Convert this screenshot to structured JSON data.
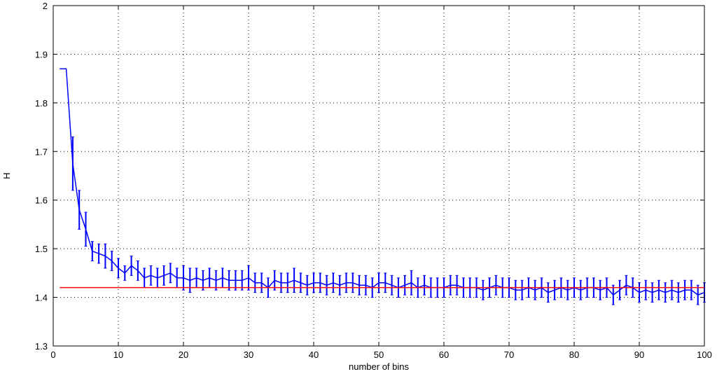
{
  "chart_data": {
    "type": "line",
    "title": "",
    "xlabel": "number of bins",
    "ylabel": "H",
    "xlim": [
      0,
      100
    ],
    "ylim": [
      1.3,
      2.0
    ],
    "xticks": [
      0,
      10,
      20,
      30,
      40,
      50,
      60,
      70,
      80,
      90,
      100
    ],
    "yticks": [
      1.3,
      1.4,
      1.5,
      1.6,
      1.7,
      1.8,
      1.9,
      2.0
    ],
    "xtick_labels": [
      "0",
      "10",
      "20",
      "30",
      "40",
      "50",
      "60",
      "70",
      "80",
      "90",
      "100"
    ],
    "ytick_labels": [
      "1.3",
      "1.4",
      "1.5",
      "1.6",
      "1.7",
      "1.8",
      "1.9",
      "2"
    ],
    "grid": true,
    "grid_style": "dotted",
    "series": [
      {
        "color": "#0000ff",
        "style": "errorbar",
        "x": [
          1,
          2,
          3,
          4,
          5,
          6,
          7,
          8,
          9,
          10,
          11,
          12,
          13,
          14,
          15,
          16,
          17,
          18,
          19,
          20,
          21,
          22,
          23,
          24,
          25,
          26,
          27,
          28,
          29,
          30,
          31,
          32,
          33,
          34,
          35,
          36,
          37,
          38,
          39,
          40,
          41,
          42,
          43,
          44,
          45,
          46,
          47,
          48,
          49,
          50,
          51,
          52,
          53,
          54,
          55,
          56,
          57,
          58,
          59,
          60,
          61,
          62,
          63,
          64,
          65,
          66,
          67,
          68,
          69,
          70,
          71,
          72,
          73,
          74,
          75,
          76,
          77,
          78,
          79,
          80,
          81,
          82,
          83,
          84,
          85,
          86,
          87,
          88,
          89,
          90,
          91,
          92,
          93,
          94,
          95,
          96,
          97,
          98,
          99,
          100
        ],
        "y": [
          1.87,
          1.87,
          1.675,
          1.58,
          1.54,
          1.495,
          1.49,
          1.485,
          1.475,
          1.46,
          1.45,
          1.465,
          1.455,
          1.44,
          1.445,
          1.44,
          1.445,
          1.45,
          1.44,
          1.44,
          1.435,
          1.44,
          1.435,
          1.44,
          1.435,
          1.44,
          1.435,
          1.435,
          1.435,
          1.44,
          1.43,
          1.43,
          1.42,
          1.435,
          1.43,
          1.43,
          1.435,
          1.43,
          1.425,
          1.43,
          1.43,
          1.425,
          1.43,
          1.425,
          1.43,
          1.43,
          1.425,
          1.425,
          1.42,
          1.43,
          1.43,
          1.425,
          1.42,
          1.425,
          1.43,
          1.42,
          1.425,
          1.42,
          1.42,
          1.42,
          1.425,
          1.425,
          1.42,
          1.42,
          1.42,
          1.415,
          1.42,
          1.425,
          1.42,
          1.42,
          1.415,
          1.415,
          1.42,
          1.415,
          1.42,
          1.41,
          1.415,
          1.42,
          1.415,
          1.42,
          1.415,
          1.42,
          1.42,
          1.415,
          1.42,
          1.405,
          1.415,
          1.425,
          1.42,
          1.41,
          1.415,
          1.41,
          1.415,
          1.41,
          1.415,
          1.41,
          1.415,
          1.415,
          1.405,
          1.41
        ],
        "err": [
          0,
          0,
          0.055,
          0.04,
          0.035,
          0.02,
          0.02,
          0.025,
          0.02,
          0.02,
          0.015,
          0.02,
          0.02,
          0.02,
          0.02,
          0.02,
          0.02,
          0.02,
          0.02,
          0.025,
          0.025,
          0.02,
          0.02,
          0.02,
          0.02,
          0.02,
          0.02,
          0.02,
          0.02,
          0.025,
          0.02,
          0.02,
          0.02,
          0.02,
          0.02,
          0.02,
          0.025,
          0.02,
          0.02,
          0.02,
          0.02,
          0.02,
          0.02,
          0.02,
          0.02,
          0.02,
          0.02,
          0.02,
          0.02,
          0.02,
          0.02,
          0.02,
          0.02,
          0.02,
          0.025,
          0.02,
          0.02,
          0.02,
          0.02,
          0.02,
          0.02,
          0.02,
          0.02,
          0.02,
          0.02,
          0.02,
          0.02,
          0.02,
          0.02,
          0.02,
          0.02,
          0.02,
          0.02,
          0.02,
          0.02,
          0.02,
          0.02,
          0.02,
          0.02,
          0.02,
          0.02,
          0.02,
          0.02,
          0.02,
          0.02,
          0.02,
          0.02,
          0.02,
          0.02,
          0.02,
          0.02,
          0.02,
          0.02,
          0.02,
          0.02,
          0.02,
          0.02,
          0.02,
          0.02,
          0.02
        ]
      },
      {
        "color": "#ff0000",
        "style": "line",
        "x": [
          1,
          100
        ],
        "y": [
          1.42,
          1.42
        ]
      }
    ]
  }
}
